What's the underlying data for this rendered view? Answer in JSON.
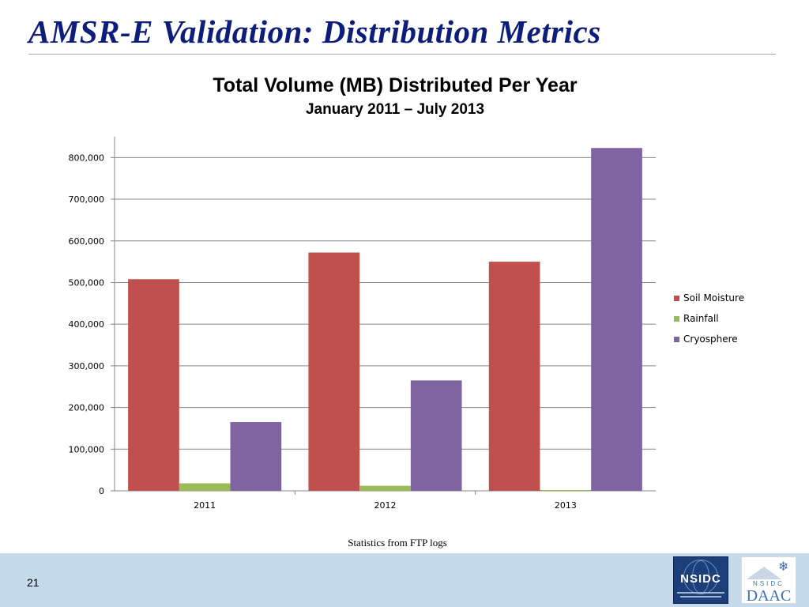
{
  "slide": {
    "title": "AMSR-E Validation: Distribution Metrics",
    "caption": "Statistics from  FTP logs",
    "page_number": "21"
  },
  "logos": {
    "nsidc": "NSIDC",
    "daac": "DAAC",
    "daac_small": "NSIDC"
  },
  "colors": {
    "title": "#0d1d7a",
    "soil_moisture": "#c0504d",
    "rainfall": "#9bbb59",
    "cryosphere": "#8064a2",
    "footer": "#c5daea"
  },
  "chart_data": {
    "type": "bar",
    "title": "Total Volume (MB) Distributed Per Year",
    "subtitle": "January 2011 – July 2013",
    "xlabel": "",
    "ylabel": "",
    "categories": [
      "2011",
      "2012",
      "2013"
    ],
    "series": [
      {
        "name": "Soil Moisture",
        "values": [
          508000,
          572000,
          550000
        ],
        "color": "#c0504d"
      },
      {
        "name": "Rainfall",
        "values": [
          18000,
          12000,
          2000
        ],
        "color": "#9bbb59"
      },
      {
        "name": "Cryosphere",
        "values": [
          165000,
          265000,
          823000
        ],
        "color": "#8064a2"
      }
    ],
    "ylim": [
      0,
      850000
    ],
    "yticks": [
      0,
      100000,
      200000,
      300000,
      400000,
      500000,
      600000,
      700000,
      800000
    ],
    "ytick_labels": [
      "0",
      "100,000",
      "200,000",
      "300,000",
      "400,000",
      "500,000",
      "600,000",
      "700,000",
      "800,000"
    ],
    "grid": true,
    "legend": "right"
  }
}
